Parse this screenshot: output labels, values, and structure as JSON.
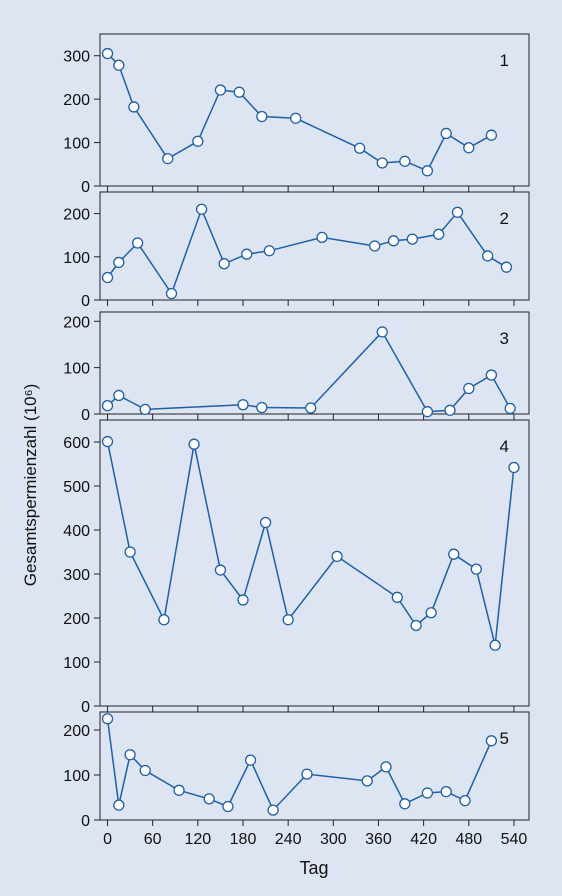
{
  "chart_data": [
    {
      "type": "line",
      "panel_label": "1",
      "ylim": [
        0,
        350
      ],
      "yticks": [
        0,
        100,
        200,
        300
      ],
      "xlim": [
        -10,
        560
      ],
      "xticks": [
        0,
        60,
        120,
        180,
        240,
        300,
        360,
        420,
        480,
        540
      ],
      "x": [
        0,
        15,
        35,
        80,
        120,
        150,
        175,
        205,
        250,
        335,
        365,
        395,
        425,
        450,
        480,
        510
      ],
      "y": [
        305,
        278,
        182,
        63,
        103,
        221,
        216,
        160,
        156,
        87,
        53,
        57,
        35,
        121,
        88,
        117
      ]
    },
    {
      "type": "line",
      "panel_label": "2",
      "ylim": [
        0,
        250
      ],
      "yticks": [
        0,
        100,
        200
      ],
      "xlim": [
        -10,
        560
      ],
      "xticks": [
        0,
        60,
        120,
        180,
        240,
        300,
        360,
        420,
        480,
        540
      ],
      "x": [
        0,
        15,
        40,
        85,
        125,
        155,
        185,
        215,
        285,
        355,
        380,
        405,
        440,
        465,
        505,
        530
      ],
      "y": [
        52,
        87,
        132,
        15,
        210,
        84,
        106,
        114,
        145,
        125,
        137,
        141,
        152,
        203,
        102,
        76
      ]
    },
    {
      "type": "line",
      "panel_label": "3",
      "ylim": [
        0,
        220
      ],
      "yticks": [
        0,
        100,
        200
      ],
      "xlim": [
        -10,
        560
      ],
      "xticks": [
        0,
        60,
        120,
        180,
        240,
        300,
        360,
        420,
        480,
        540
      ],
      "x": [
        0,
        15,
        50,
        180,
        205,
        270,
        365,
        425,
        455,
        480,
        510,
        535
      ],
      "y": [
        18,
        40,
        10,
        20,
        14,
        13,
        177,
        5,
        8,
        55,
        84,
        12
      ]
    },
    {
      "type": "line",
      "panel_label": "4",
      "ylim": [
        0,
        650
      ],
      "yticks": [
        0,
        100,
        200,
        300,
        400,
        500,
        600
      ],
      "xlim": [
        -10,
        560
      ],
      "xticks": [
        0,
        60,
        120,
        180,
        240,
        300,
        360,
        420,
        480,
        540
      ],
      "x": [
        0,
        30,
        75,
        115,
        150,
        180,
        210,
        240,
        305,
        385,
        410,
        430,
        460,
        490,
        515,
        540
      ],
      "y": [
        601,
        350,
        196,
        595,
        309,
        241,
        417,
        196,
        340,
        247,
        183,
        212,
        345,
        311,
        138,
        542
      ]
    },
    {
      "type": "line",
      "panel_label": "5",
      "ylim": [
        0,
        240
      ],
      "yticks": [
        0,
        100,
        200
      ],
      "xlim": [
        -10,
        560
      ],
      "xticks": [
        0,
        60,
        120,
        180,
        240,
        300,
        360,
        420,
        480,
        540
      ],
      "xticklabels": [
        "0",
        "60",
        "120",
        "180",
        "240",
        "300",
        "360",
        "420",
        "480",
        "540"
      ],
      "xlabel": "Tag",
      "x": [
        0,
        15,
        30,
        50,
        95,
        135,
        160,
        190,
        220,
        265,
        345,
        370,
        395,
        425,
        450,
        475,
        510
      ],
      "y": [
        225,
        33,
        145,
        110,
        66,
        47,
        30,
        133,
        22,
        102,
        87,
        118,
        36,
        60,
        63,
        43,
        176
      ]
    }
  ],
  "shared": {
    "ylabel": "Gesamtspermienzahl (10⁶)",
    "colors": {
      "line": "#1f5fa6",
      "marker_fill": "#ffffff",
      "background": "#dde5f3",
      "frame": "#222222"
    }
  }
}
